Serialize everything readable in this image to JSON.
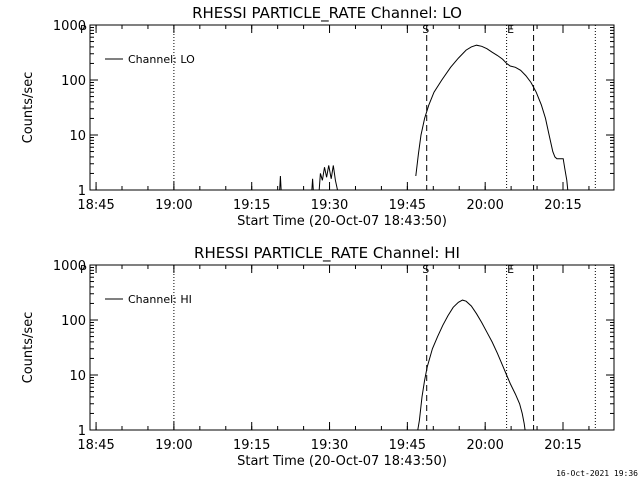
{
  "footer_text": "16-Oct-2021 19:36",
  "chart_data": [
    {
      "type": "line",
      "title": "RHESSI PARTICLE_RATE Channel: LO",
      "xlabel": "Start Time (20-Oct-07 18:43:50)",
      "ylabel": "Counts/sec",
      "yscale": "log",
      "ylim": [
        1,
        1000
      ],
      "xlim_minutes": [
        0,
        101
      ],
      "x_tick_labels": [
        "18:45",
        "19:00",
        "19:15",
        "19:30",
        "19:45",
        "20:00",
        "20:15"
      ],
      "x_ticks_minutes": [
        1.17,
        16.17,
        31.17,
        46.17,
        61.17,
        76.17,
        91.17
      ],
      "y_tick_labels": [
        "1",
        "10",
        "100",
        "1000"
      ],
      "y_ticks": [
        1,
        10,
        100,
        1000
      ],
      "legend": {
        "label": "Channel: LO",
        "position": "top-left"
      },
      "markers": {
        "S": "S",
        "E": "E"
      },
      "dotted_lines_minutes": [
        16.17,
        80.3,
        97.4
      ],
      "dashed_lines_minutes": [
        64.9,
        85.5
      ],
      "S_minutes": 64.9,
      "E_minutes": 80.3,
      "series": [
        {
          "name": "Channel: LO",
          "segments": [
            [
              [
                36.5,
                0.8
              ],
              [
                36.7,
                1.8
              ],
              [
                36.9,
                0.8
              ]
            ],
            [
              [
                42.7,
                0.8
              ],
              [
                42.9,
                1.6
              ],
              [
                43.1,
                0.8
              ]
            ],
            [
              [
                44.1,
                0.8
              ],
              [
                44.4,
                2.0
              ],
              [
                44.8,
                1.5
              ],
              [
                45.2,
                2.6
              ],
              [
                45.6,
                1.7
              ],
              [
                46.0,
                2.8
              ],
              [
                46.5,
                1.6
              ],
              [
                46.9,
                2.8
              ],
              [
                47.3,
                1.5
              ],
              [
                47.7,
                1.0
              ],
              [
                48.2,
                0.8
              ]
            ],
            [
              [
                62.8,
                1.8
              ],
              [
                63.3,
                4.5
              ],
              [
                63.8,
                10
              ],
              [
                64.5,
                20
              ],
              [
                65.3,
                35
              ],
              [
                66.3,
                60
              ],
              [
                67.8,
                100
              ],
              [
                69.5,
                170
              ],
              [
                71.0,
                250
              ],
              [
                72.5,
                350
              ],
              [
                73.5,
                400
              ],
              [
                74.5,
                430
              ],
              [
                75.5,
                410
              ],
              [
                76.5,
                370
              ],
              [
                77.5,
                320
              ],
              [
                78.5,
                280
              ],
              [
                79.5,
                240
              ],
              [
                80.3,
                200
              ],
              [
                81.0,
                180
              ],
              [
                82.0,
                170
              ],
              [
                83.0,
                150
              ],
              [
                84.0,
                120
              ],
              [
                85.0,
                90
              ],
              [
                86.0,
                60
              ],
              [
                87.0,
                35
              ],
              [
                87.8,
                20
              ],
              [
                88.5,
                10
              ],
              [
                89.2,
                5
              ],
              [
                89.6,
                4
              ],
              [
                90.0,
                3.7
              ],
              [
                90.5,
                3.7
              ],
              [
                91.2,
                3.7
              ],
              [
                91.5,
                2.5
              ],
              [
                91.9,
                1.5
              ],
              [
                92.2,
                0.8
              ]
            ]
          ]
        }
      ]
    },
    {
      "type": "line",
      "title": "RHESSI PARTICLE_RATE Channel: HI",
      "xlabel": "Start Time (20-Oct-07 18:43:50)",
      "ylabel": "Counts/sec",
      "yscale": "log",
      "ylim": [
        1,
        1000
      ],
      "xlim_minutes": [
        0,
        101
      ],
      "x_tick_labels": [
        "18:45",
        "19:00",
        "19:15",
        "19:30",
        "19:45",
        "20:00",
        "20:15"
      ],
      "x_ticks_minutes": [
        1.17,
        16.17,
        31.17,
        46.17,
        61.17,
        76.17,
        91.17
      ],
      "y_tick_labels": [
        "1",
        "10",
        "100",
        "1000"
      ],
      "y_ticks": [
        1,
        10,
        100,
        1000
      ],
      "legend": {
        "label": "Channel: HI",
        "position": "top-left"
      },
      "markers": {
        "S": "S",
        "E": "E"
      },
      "dotted_lines_minutes": [
        16.17,
        80.3,
        97.4
      ],
      "dashed_lines_minutes": [
        64.9,
        85.5
      ],
      "S_minutes": 64.9,
      "E_minutes": 80.3,
      "series": [
        {
          "name": "Channel: HI",
          "segments": [
            [
              [
                63.0,
                0.8
              ],
              [
                63.5,
                1.5
              ],
              [
                64.0,
                4
              ],
              [
                64.5,
                8
              ],
              [
                65.0,
                14
              ],
              [
                66.0,
                30
              ],
              [
                67.0,
                50
              ],
              [
                68.0,
                80
              ],
              [
                69.0,
                120
              ],
              [
                70.0,
                170
              ],
              [
                71.0,
                210
              ],
              [
                71.8,
                230
              ],
              [
                72.5,
                220
              ],
              [
                73.5,
                180
              ],
              [
                74.5,
                130
              ],
              [
                75.5,
                90
              ],
              [
                76.5,
                60
              ],
              [
                77.5,
                40
              ],
              [
                78.5,
                25
              ],
              [
                79.5,
                15
              ],
              [
                80.3,
                10
              ],
              [
                81.0,
                7
              ],
              [
                82.0,
                4.5
              ],
              [
                82.8,
                3
              ],
              [
                83.3,
                2
              ],
              [
                83.7,
                1.3
              ],
              [
                84.0,
                0.8
              ]
            ]
          ]
        }
      ]
    }
  ]
}
